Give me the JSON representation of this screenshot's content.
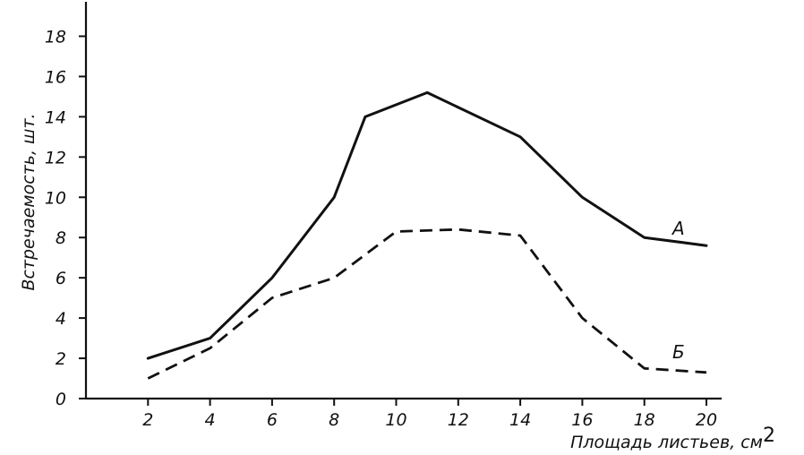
{
  "chart_data": {
    "type": "line",
    "xlabel": "Площадь листьев, см",
    "xlabel_superscript": "2",
    "ylabel": "Встречаемость, шт.",
    "xlim": [
      0,
      20
    ],
    "ylim": [
      0,
      19
    ],
    "x_ticks": [
      2,
      4,
      6,
      8,
      10,
      12,
      14,
      16,
      18,
      20
    ],
    "y_ticks": [
      0,
      2,
      4,
      6,
      8,
      10,
      12,
      14,
      16,
      18
    ],
    "grid": false,
    "series": [
      {
        "name": "А",
        "style": "solid",
        "x": [
          2,
          4,
          6,
          8,
          9,
          11,
          14,
          16,
          18,
          20
        ],
        "y": [
          2,
          3,
          6,
          10,
          14,
          15.2,
          13,
          10,
          8,
          7.6
        ]
      },
      {
        "name": "Б",
        "style": "dashed",
        "x": [
          2,
          4,
          6,
          8,
          10,
          12,
          14,
          16,
          18,
          20
        ],
        "y": [
          1,
          2.5,
          5,
          6,
          8.3,
          8.4,
          8.1,
          4,
          1.5,
          1.3
        ]
      }
    ]
  }
}
